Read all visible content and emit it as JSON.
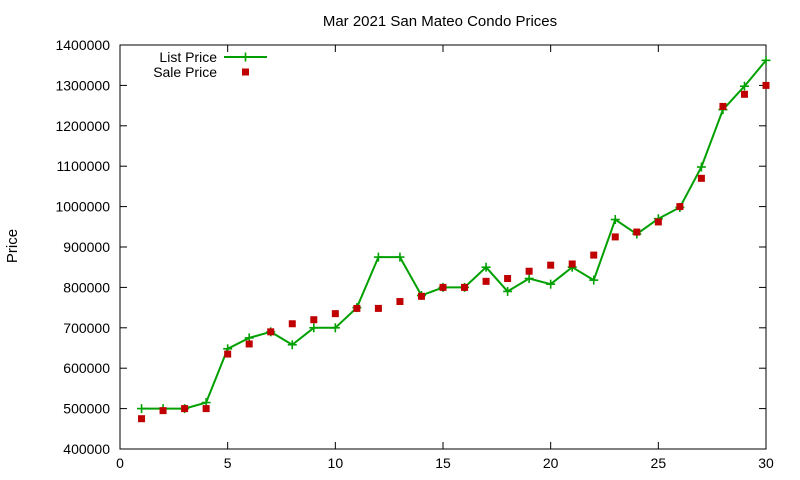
{
  "chart_data": {
    "type": "line",
    "title": "Mar 2021 San Mateo Condo Prices",
    "xlabel": "",
    "ylabel": "Price",
    "xlim": [
      0,
      30
    ],
    "ylim": [
      400000,
      1400000
    ],
    "xticks": [
      0,
      5,
      10,
      15,
      20,
      25,
      30
    ],
    "yticks": [
      400000,
      500000,
      600000,
      700000,
      800000,
      900000,
      1000000,
      1100000,
      1200000,
      1300000,
      1400000
    ],
    "grid": false,
    "legend_position": "top-left",
    "x": [
      1,
      2,
      3,
      4,
      5,
      6,
      7,
      8,
      9,
      10,
      11,
      12,
      13,
      14,
      15,
      16,
      17,
      18,
      19,
      20,
      21,
      22,
      23,
      24,
      25,
      26,
      27,
      28,
      29,
      30
    ],
    "series": [
      {
        "name": "List Price",
        "style": "line-points",
        "color": "#00a000",
        "values": [
          500000,
          500000,
          500000,
          515000,
          648000,
          675000,
          690000,
          658000,
          700000,
          700000,
          750000,
          875000,
          875000,
          780000,
          800000,
          800000,
          850000,
          790000,
          822000,
          808000,
          850000,
          818000,
          968000,
          932000,
          970000,
          998000,
          1098000,
          1240000,
          1298000,
          1362000
        ]
      },
      {
        "name": "Sale Price",
        "style": "points",
        "color": "#c00000",
        "values": [
          475000,
          495000,
          500000,
          500000,
          635000,
          660000,
          690000,
          710000,
          720000,
          735000,
          748000,
          748000,
          765000,
          778000,
          800000,
          800000,
          815000,
          822000,
          840000,
          855000,
          858000,
          880000,
          925000,
          937000,
          962000,
          1000000,
          1070000,
          1248000,
          1278000,
          1300000
        ]
      }
    ]
  }
}
